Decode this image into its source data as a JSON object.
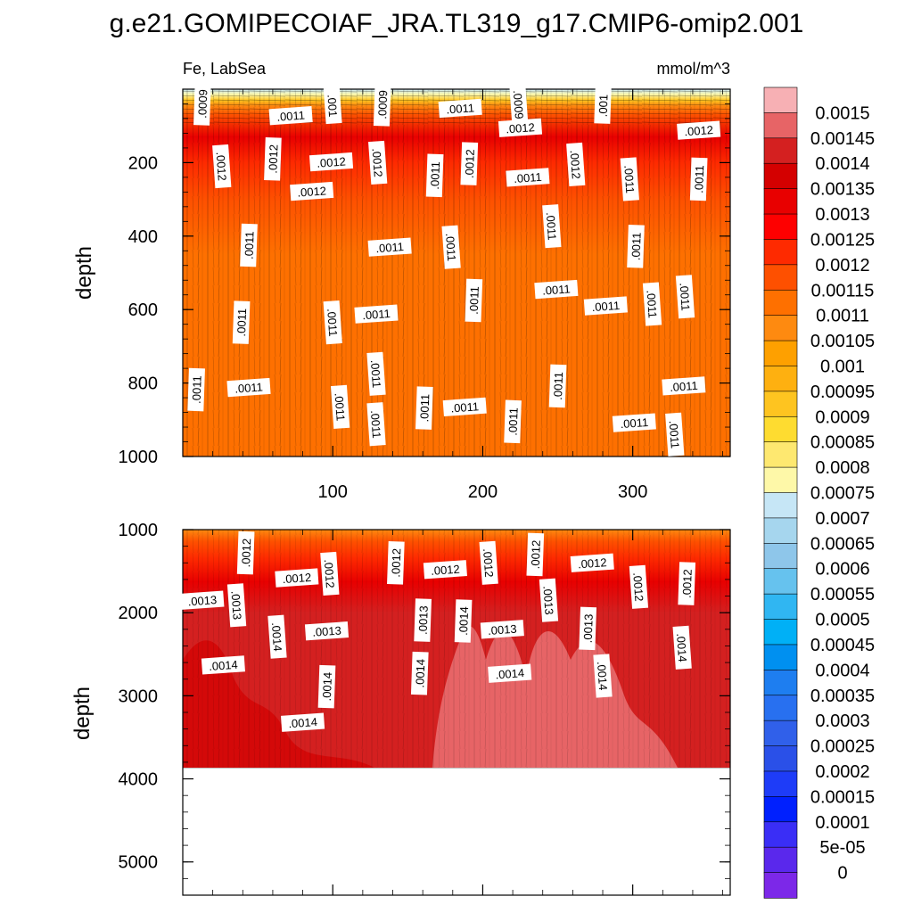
{
  "chart_data": {
    "type": "contour",
    "title": "g.e21.GOMIPECOIAF_JRA.TL319_g17.CMIP6-omip2.001",
    "variable": "Fe, LabSea",
    "units": "mmol/m^3",
    "x_range": [
      0,
      365
    ],
    "x_ticks": [
      100,
      200,
      300
    ],
    "x_tick_labels": [
      "100",
      "200",
      "300"
    ],
    "panels": [
      {
        "name": "upper",
        "ylabel": "depth",
        "ylim": [
          0,
          1000
        ],
        "y_ticks": [
          200,
          400,
          600,
          800,
          1000
        ],
        "y_tick_labels": [
          "200",
          "400",
          "600",
          "800",
          "1000"
        ],
        "contour_labels": [
          {
            "text": ".0009",
            "x": 13,
            "y": 40
          },
          {
            "text": ".0011",
            "x": 72,
            "y": 72
          },
          {
            "text": ".001",
            "x": 100,
            "y": 45
          },
          {
            "text": ".0009",
            "x": 133,
            "y": 42
          },
          {
            "text": ".0011",
            "x": 185,
            "y": 52
          },
          {
            "text": ".0009",
            "x": 224,
            "y": 42
          },
          {
            "text": ".001",
            "x": 280,
            "y": 45
          },
          {
            "text": ".0012",
            "x": 344,
            "y": 112
          },
          {
            "text": ".0012",
            "x": 26,
            "y": 210
          },
          {
            "text": ".0012",
            "x": 60,
            "y": 190
          },
          {
            "text": ".0012",
            "x": 99,
            "y": 198
          },
          {
            "text": ".0012",
            "x": 130,
            "y": 200
          },
          {
            "text": ".0012",
            "x": 191,
            "y": 203
          },
          {
            "text": ".0012",
            "x": 225,
            "y": 105
          },
          {
            "text": ".0012",
            "x": 262,
            "y": 205
          },
          {
            "text": ".0011",
            "x": 168,
            "y": 235
          },
          {
            "text": ".0011",
            "x": 230,
            "y": 240
          },
          {
            "text": ".0011",
            "x": 298,
            "y": 245
          },
          {
            "text": ".0011",
            "x": 344,
            "y": 245
          },
          {
            "text": ".0012",
            "x": 86,
            "y": 278
          },
          {
            "text": ".0011",
            "x": 246,
            "y": 373
          },
          {
            "text": ".0011",
            "x": 44,
            "y": 425
          },
          {
            "text": ".0011",
            "x": 138,
            "y": 430
          },
          {
            "text": ".0011",
            "x": 179,
            "y": 430
          },
          {
            "text": ".0011",
            "x": 302,
            "y": 428
          },
          {
            "text": ".0011",
            "x": 249,
            "y": 545
          },
          {
            "text": ".0011",
            "x": 335,
            "y": 565
          },
          {
            "text": ".0011",
            "x": 194,
            "y": 575
          },
          {
            "text": ".0011",
            "x": 282,
            "y": 590
          },
          {
            "text": ".0011",
            "x": 313,
            "y": 585
          },
          {
            "text": ".0011",
            "x": 39,
            "y": 635
          },
          {
            "text": ".0011",
            "x": 129,
            "y": 612
          },
          {
            "text": ".0011",
            "x": 100,
            "y": 635
          },
          {
            "text": ".0011",
            "x": 9,
            "y": 818
          },
          {
            "text": ".0011",
            "x": 44,
            "y": 812
          },
          {
            "text": ".0011",
            "x": 129,
            "y": 775
          },
          {
            "text": ".0011",
            "x": 250,
            "y": 808
          },
          {
            "text": ".0011",
            "x": 334,
            "y": 808
          },
          {
            "text": ".0011",
            "x": 105,
            "y": 865
          },
          {
            "text": ".0011",
            "x": 161,
            "y": 868
          },
          {
            "text": ".0011",
            "x": 188,
            "y": 865
          },
          {
            "text": ".0011",
            "x": 129,
            "y": 912
          },
          {
            "text": ".0011",
            "x": 220,
            "y": 905
          },
          {
            "text": ".0011",
            "x": 301,
            "y": 908
          },
          {
            "text": ".0011",
            "x": 328,
            "y": 940
          }
        ]
      },
      {
        "name": "lower",
        "ylabel": "depth",
        "ylim": [
          1000,
          5400
        ],
        "data_bottom_depth": 3870,
        "y_ticks": [
          1000,
          2000,
          3000,
          4000,
          5000
        ],
        "y_tick_labels": [
          "1000",
          "2000",
          "3000",
          "4000",
          "5000"
        ],
        "contour_labels": [
          {
            "text": ".0012",
            "x": 42,
            "y": 1280
          },
          {
            "text": ".0012",
            "x": 76,
            "y": 1580
          },
          {
            "text": ".0012",
            "x": 98,
            "y": 1530
          },
          {
            "text": ".0012",
            "x": 142,
            "y": 1400
          },
          {
            "text": ".0012",
            "x": 175,
            "y": 1480
          },
          {
            "text": ".0012",
            "x": 204,
            "y": 1400
          },
          {
            "text": ".0012",
            "x": 235,
            "y": 1300
          },
          {
            "text": ".0012",
            "x": 273,
            "y": 1400
          },
          {
            "text": ".0012",
            "x": 304,
            "y": 1690
          },
          {
            "text": ".0012",
            "x": 336,
            "y": 1650
          },
          {
            "text": ".0013",
            "x": 13,
            "y": 1850
          },
          {
            "text": ".0013",
            "x": 36,
            "y": 1910
          },
          {
            "text": ".0013",
            "x": 160,
            "y": 2090
          },
          {
            "text": ".0013",
            "x": 213,
            "y": 2200
          },
          {
            "text": ".0013",
            "x": 244,
            "y": 1850
          },
          {
            "text": ".0013",
            "x": 270,
            "y": 2190
          },
          {
            "text": ".0013",
            "x": 96,
            "y": 2220
          },
          {
            "text": ".0014",
            "x": 63,
            "y": 2290
          },
          {
            "text": ".0014",
            "x": 187,
            "y": 2100
          },
          {
            "text": ".0014",
            "x": 27,
            "y": 2630
          },
          {
            "text": ".0014",
            "x": 333,
            "y": 2420
          },
          {
            "text": ".0014",
            "x": 158,
            "y": 2730
          },
          {
            "text": ".0014",
            "x": 218,
            "y": 2730
          },
          {
            "text": ".0014",
            "x": 280,
            "y": 2760
          },
          {
            "text": ".0014",
            "x": 96,
            "y": 2890
          },
          {
            "text": ".0014",
            "x": 80,
            "y": 3320
          }
        ]
      }
    ],
    "colorbar": {
      "labels": [
        "0.0015",
        "0.00145",
        "0.0014",
        "0.00135",
        "0.0013",
        "0.00125",
        "0.0012",
        "0.00115",
        "0.0011",
        "0.00105",
        "0.001",
        "0.00095",
        "0.0009",
        "0.00085",
        "0.0008",
        "0.00075",
        "0.0007",
        "0.00065",
        "0.0006",
        "0.00055",
        "0.0005",
        "0.00045",
        "0.0004",
        "0.00035",
        "0.0003",
        "0.00025",
        "0.0002",
        "0.00015",
        "0.0001",
        "5e-05",
        "0"
      ],
      "colors": [
        "#f7b0b4",
        "#e76466",
        "#d42020",
        "#d40000",
        "#e80000",
        "#fe0000",
        "#fe2a00",
        "#fe5000",
        "#fe7000",
        "#fe8a10",
        "#fea000",
        "#feb010",
        "#fec420",
        "#fedc30",
        "#fee870",
        "#fef8a8",
        "#c6e6f6",
        "#a6d6ee",
        "#8ec6ea",
        "#66c2ee",
        "#30b6f2",
        "#00b0f6",
        "#0090f0",
        "#1e7ef0",
        "#2870f0",
        "#3060ea",
        "#2a50e8",
        "#1e3cf8",
        "#0020fe",
        "#3a2ef6",
        "#5a28ec",
        "#7c28e8"
      ]
    }
  }
}
